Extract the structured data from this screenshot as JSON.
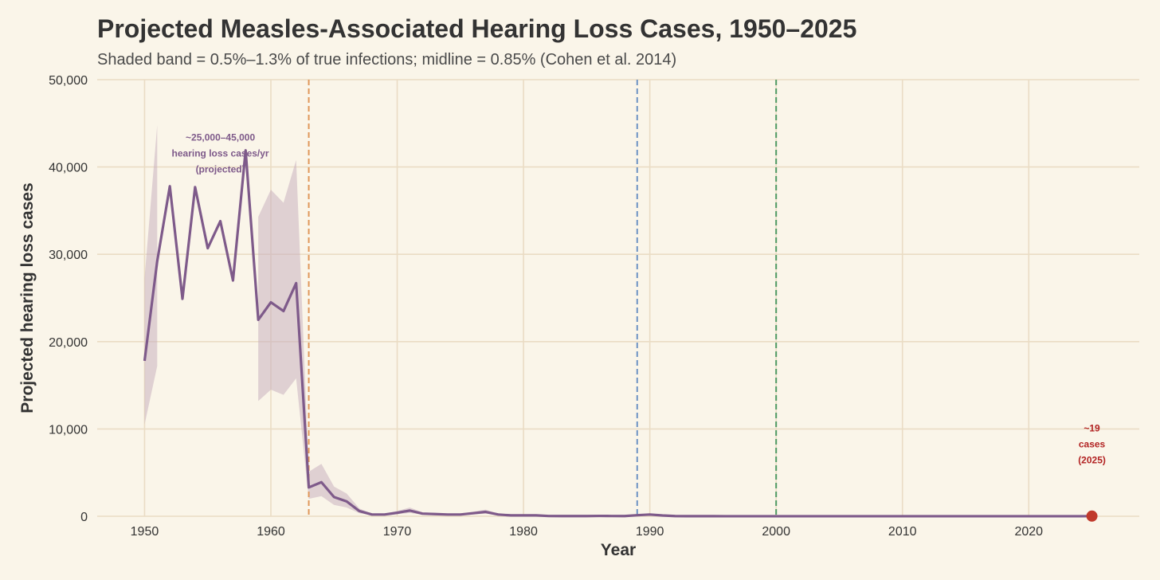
{
  "chart_data": {
    "type": "line",
    "title": "Projected Measles-Associated Hearing Loss Cases, 1950–2025",
    "subtitle": "Shaded band = 0.5%–1.3% of true infections; midline = 0.85% (Cohen et al. 2014)",
    "xlabel": "Year",
    "ylabel": "Projected hearing loss cases",
    "xlim": [
      1946.25,
      2028.75
    ],
    "ylim": [
      0,
      50000
    ],
    "x_ticks": [
      "1950",
      "1960",
      "1970",
      "1980",
      "1990",
      "2000",
      "2010",
      "2020"
    ],
    "x_tick_values": [
      1950,
      1960,
      1970,
      1980,
      1990,
      2000,
      2010,
      2020
    ],
    "y_ticks": [
      "0",
      "10,000",
      "20,000",
      "30,000",
      "40,000",
      "50,000"
    ],
    "y_tick_values": [
      0,
      10000,
      20000,
      30000,
      40000,
      50000
    ],
    "grid": true,
    "series": [
      {
        "kind": "line",
        "color": "#7e5a8a",
        "x": [
          1950,
          1951,
          1952,
          1953,
          1954,
          1955,
          1956,
          1957,
          1958,
          1959,
          1960,
          1961,
          1962,
          1963,
          1964,
          1965,
          1966,
          1967,
          1968,
          1969,
          1970,
          1971,
          1972,
          1973,
          1974,
          1975,
          1976,
          1977,
          1978,
          1979,
          1980,
          1981,
          1982,
          1983,
          1984,
          1985,
          1986,
          1987,
          1988,
          1989,
          1990,
          1991,
          1992,
          1993,
          1994,
          1995,
          1996,
          1997,
          1998,
          1999,
          2000,
          2001,
          2002,
          2003,
          2004,
          2005,
          2006,
          2007,
          2008,
          2009,
          2010,
          2011,
          2012,
          2013,
          2014,
          2015,
          2016,
          2017,
          2018,
          2019,
          2020,
          2021,
          2022,
          2023,
          2024,
          2025
        ],
        "values": [
          17800,
          29200,
          37800,
          24900,
          37700,
          30700,
          33800,
          27000,
          41900,
          22500,
          24500,
          23500,
          26700,
          3300,
          3900,
          2200,
          1700,
          600,
          200,
          200,
          400,
          650,
          300,
          250,
          200,
          200,
          350,
          500,
          200,
          100,
          100,
          100,
          30,
          20,
          20,
          20,
          40,
          30,
          20,
          120,
          200,
          90,
          20,
          10,
          10,
          10,
          5,
          5,
          5,
          5,
          5,
          5,
          5,
          5,
          5,
          5,
          5,
          5,
          5,
          5,
          5,
          5,
          5,
          5,
          5,
          5,
          5,
          5,
          5,
          5,
          5,
          5,
          5,
          5,
          5,
          19
        ]
      },
      {
        "kind": "band",
        "color": "#c9b0c0",
        "x": [
          1950,
          1951,
          1952,
          1953,
          1954,
          1955,
          1956,
          1957,
          1958,
          1959,
          1960,
          1961,
          1962,
          1963,
          1964,
          1965,
          1966,
          1967,
          1968,
          1969,
          1970,
          1971,
          1972,
          1973,
          1974,
          1975,
          1976,
          1977,
          1978,
          1979,
          1980,
          1981,
          1982,
          1983,
          1984,
          1985,
          1986,
          1987,
          1988,
          1989,
          1990,
          1991,
          1992,
          1993,
          1994,
          1995,
          1996,
          1997,
          1998,
          1999,
          2000,
          2001,
          2002,
          2003,
          2004,
          2005,
          2006,
          2007,
          2008,
          2009,
          2010,
          2011,
          2012,
          2013,
          2014,
          2015,
          2016,
          2017,
          2018,
          2019,
          2020,
          2021,
          2022,
          2023,
          2024,
          2025
        ],
        "lower": [
          10500,
          17200,
          null,
          null,
          null,
          null,
          null,
          null,
          null,
          13200,
          14500,
          13900,
          15800,
          2000,
          2300,
          1300,
          1000,
          350,
          120,
          120,
          240,
          380,
          180,
          150,
          120,
          120,
          200,
          300,
          120,
          60,
          60,
          60,
          20,
          12,
          12,
          12,
          24,
          18,
          12,
          70,
          120,
          55,
          12,
          6,
          6,
          6,
          3,
          3,
          3,
          3,
          3,
          3,
          3,
          3,
          3,
          3,
          3,
          3,
          3,
          3,
          3,
          3,
          3,
          3,
          3,
          3,
          3,
          3,
          3,
          3,
          3,
          3,
          3,
          3,
          3,
          11
        ],
        "upper": [
          27300,
          44800,
          null,
          null,
          null,
          null,
          null,
          null,
          null,
          34300,
          37400,
          35900,
          40800,
          5100,
          6000,
          3400,
          2600,
          900,
          300,
          300,
          600,
          1000,
          460,
          380,
          300,
          300,
          530,
          760,
          300,
          150,
          150,
          150,
          45,
          30,
          30,
          30,
          60,
          45,
          30,
          180,
          300,
          140,
          30,
          15,
          15,
          15,
          8,
          8,
          8,
          8,
          8,
          8,
          8,
          8,
          8,
          8,
          8,
          8,
          8,
          8,
          8,
          8,
          8,
          8,
          8,
          8,
          8,
          8,
          8,
          8,
          8,
          8,
          8,
          8,
          8,
          29
        ]
      }
    ],
    "vlines": [
      {
        "x": 1963,
        "color": "#e0975a"
      },
      {
        "x": 1989,
        "color": "#6d93c4"
      },
      {
        "x": 2000,
        "color": "#4f9a63"
      }
    ],
    "annotations": [
      {
        "lines": [
          "~25,000–45,000",
          "hearing loss cases/yr",
          "(projected)"
        ],
        "x": 1956,
        "y": 43000,
        "color": "#7e5a8a"
      },
      {
        "lines": [
          "~19",
          "cases",
          "(2025)"
        ],
        "x": 2025,
        "y": 9700,
        "color": "#b22222"
      }
    ],
    "marker": {
      "x": 2025,
      "y": 19,
      "color": "#c0392b"
    }
  }
}
